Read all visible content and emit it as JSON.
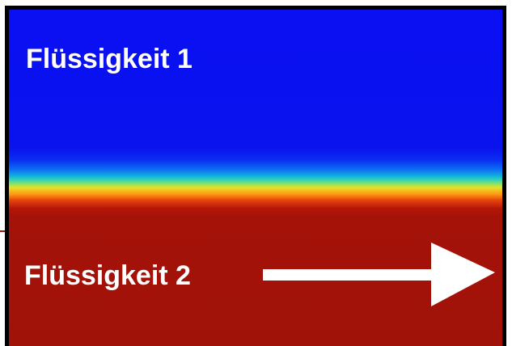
{
  "labels": {
    "fluid_top": "Flüssigkeit 1",
    "fluid_bottom": "Flüssigkeit 2"
  },
  "colors": {
    "fluid_top": "#0a10f2",
    "interface": [
      "#17c3d6",
      "#6de27b",
      "#e6e128",
      "#ff9a14"
    ],
    "fluid_bottom": "#a01208",
    "frame": "#000000",
    "text_and_arrow": "#ffffff"
  },
  "arrow": {
    "icon": "arrow-right-icon",
    "direction": "right"
  }
}
